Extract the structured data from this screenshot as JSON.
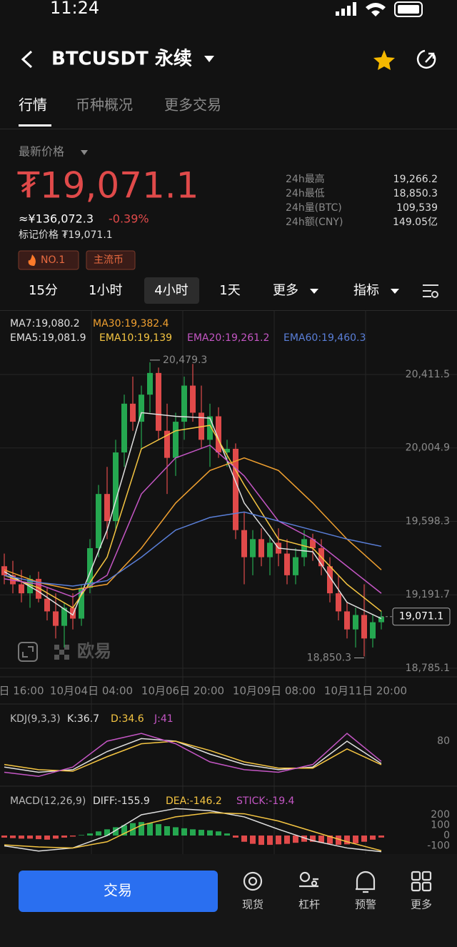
{
  "status_bar": {
    "time": "11:24"
  },
  "header": {
    "title": "BTCUSDT 永续"
  },
  "tabs": [
    "行情",
    "币种概况",
    "更多交易"
  ],
  "price": {
    "label": "最新价格",
    "last": "₮19,071.1",
    "cny": "≈¥136,072.3",
    "change": "-0.39%",
    "mark": "标记价格 ₮19,071.1"
  },
  "stats": [
    [
      "24h最高",
      "19,266.2"
    ],
    [
      "24h最低",
      "18,850.3"
    ],
    [
      "24h量(BTC)",
      "109,539"
    ],
    [
      "24h额(CNY)",
      "149.05亿"
    ]
  ],
  "tags": [
    "NO.1",
    "主流币"
  ],
  "intervals": [
    "15分",
    "1小时",
    "4小时",
    "1天",
    "更多",
    "指标"
  ],
  "chart": {
    "type": "candlestick",
    "legend": [
      {
        "text": "MA7:19,080.2",
        "color": "#e0e0e0"
      },
      {
        "text": "MA30:19,382.4",
        "color": "#f0a030"
      },
      {
        "text": "EMA5:19,081.9",
        "color": "#e0e0e0"
      },
      {
        "text": "EMA10:19,139",
        "color": "#f5c542"
      },
      {
        "text": "EMA20:19,261.2",
        "color": "#c456c4"
      },
      {
        "text": "EMA60:19,460.3",
        "color": "#5a7fd8"
      }
    ],
    "ylim": [
      18745.5,
      20546
    ],
    "yticks": [
      {
        "value": 20411.5,
        "label": "20,411.5"
      },
      {
        "value": 20004.9,
        "label": "20,004.9"
      },
      {
        "value": 19598.3,
        "label": "19,598.3"
      },
      {
        "value": 19191.7,
        "label": "19,191.7"
      },
      {
        "value": 18785.1,
        "label": "18,785.1"
      }
    ],
    "x_labels": [
      "日 16:00",
      "10月04日 04:00",
      "10月06日 20:00",
      "10月09日 08:00",
      "10月11日 20:00"
    ],
    "high_label": "20,479.3",
    "low_label": "18,850.3",
    "last_label": "19,071.1",
    "up_color": "#25a750",
    "down_color": "#e04a4a",
    "candles": {
      "open": [
        19350,
        19300,
        19250,
        19200,
        19280,
        19170,
        19100,
        19020,
        19120,
        19060,
        19230,
        19450,
        19750,
        19600,
        19980,
        20250,
        20150,
        20300,
        20420,
        20100,
        19950,
        20150,
        20350,
        20200,
        20050,
        20180,
        19980,
        20000,
        19550,
        19400,
        19500,
        19400,
        19480,
        19420,
        19300,
        19400,
        19500,
        19450,
        19350,
        19200,
        19100,
        19000,
        19080,
        18950,
        19040
      ],
      "high": [
        19420,
        19380,
        19330,
        19300,
        19320,
        19230,
        19200,
        19150,
        19200,
        19250,
        19500,
        19800,
        19900,
        20050,
        20300,
        20400,
        20350,
        20479.3,
        20450,
        20250,
        20200,
        20400,
        20470,
        20350,
        20250,
        20230,
        20050,
        20030,
        19650,
        19550,
        19560,
        19520,
        19560,
        19500,
        19450,
        19550,
        19530,
        19500,
        19400,
        19300,
        19150,
        19120,
        19250,
        19080,
        19100
      ],
      "low": [
        19250,
        19200,
        19150,
        19120,
        19150,
        19050,
        18950,
        18900,
        19000,
        19020,
        19200,
        19400,
        19500,
        19550,
        19900,
        20100,
        20000,
        20200,
        20050,
        19750,
        19850,
        20050,
        20150,
        20000,
        19900,
        19950,
        19900,
        19500,
        19250,
        19300,
        19350,
        19300,
        19350,
        19250,
        19250,
        19350,
        19380,
        19300,
        19150,
        19050,
        18950,
        18900,
        18850.3,
        18900,
        19000
      ],
      "close": [
        19300,
        19250,
        19200,
        19280,
        19170,
        19100,
        19020,
        19120,
        19060,
        19230,
        19450,
        19750,
        19600,
        19980,
        20250,
        20150,
        20300,
        20420,
        20100,
        19950,
        20150,
        20350,
        20200,
        20050,
        20180,
        19980,
        20000,
        19550,
        19400,
        19500,
        19400,
        19480,
        19420,
        19300,
        19400,
        19500,
        19450,
        19350,
        19200,
        19100,
        19000,
        19080,
        18950,
        19040,
        19071.1
      ]
    },
    "line_x": [
      0,
      4,
      8,
      12,
      16,
      20,
      24,
      28,
      32,
      36,
      40,
      44
    ],
    "lines": [
      {
        "color": "#e0e0e0",
        "values": [
          19320,
          19210,
          19080,
          19550,
          20200,
          20180,
          20170,
          19700,
          19450,
          19430,
          19150,
          19060
        ]
      },
      {
        "color": "#f5c542",
        "values": [
          19300,
          19230,
          19120,
          19400,
          20000,
          20100,
          20130,
          19800,
          19500,
          19450,
          19250,
          19100
        ]
      },
      {
        "color": "#c456c4",
        "values": [
          19280,
          19250,
          19180,
          19300,
          19750,
          19950,
          20020,
          19850,
          19600,
          19500,
          19350,
          19200
        ]
      },
      {
        "color": "#f0a030",
        "values": [
          19330,
          19260,
          19220,
          19250,
          19450,
          19700,
          19880,
          19950,
          19880,
          19700,
          19500,
          19330
        ]
      },
      {
        "color": "#5a7fd8",
        "values": [
          19300,
          19260,
          19240,
          19270,
          19400,
          19550,
          19620,
          19650,
          19600,
          19550,
          19500,
          19460
        ]
      }
    ]
  },
  "kdj": {
    "legend": [
      {
        "text": "KDJ(9,3,3)",
        "color": "#bbbbbb"
      },
      {
        "text": "K:36.7",
        "color": "#e0e0e0"
      },
      {
        "text": "D:34.6",
        "color": "#f5c542"
      },
      {
        "text": "J:41",
        "color": "#c456c4"
      }
    ],
    "ylim": [
      0,
      100
    ],
    "yticks": [
      80
    ],
    "lines": [
      {
        "color": "#e0e0e0",
        "values": [
          30,
          20,
          25,
          60,
          85,
          80,
          55,
          35,
          25,
          30,
          80,
          36.7
        ]
      },
      {
        "color": "#f5c542",
        "values": [
          35,
          25,
          22,
          50,
          75,
          80,
          62,
          40,
          28,
          28,
          65,
          34.6
        ]
      },
      {
        "color": "#c456c4",
        "values": [
          20,
          12,
          30,
          80,
          95,
          75,
          40,
          25,
          20,
          35,
          95,
          41
        ]
      }
    ]
  },
  "macd": {
    "legend": [
      {
        "text": "MACD(12,26,9)",
        "color": "#bbbbbb"
      },
      {
        "text": "DIFF:-155.9",
        "color": "#e0e0e0"
      },
      {
        "text": "DEA:-146.2",
        "color": "#f5c542"
      },
      {
        "text": "STICK:-19.4",
        "color": "#c456c4"
      }
    ],
    "ylim": [
      -179,
      407
    ],
    "yticks": [
      200,
      100,
      0,
      -100
    ],
    "sticks": [
      -20,
      -25,
      -30,
      -30,
      -35,
      -40,
      -30,
      -20,
      -10,
      5,
      20,
      40,
      60,
      80,
      100,
      120,
      130,
      120,
      110,
      90,
      80,
      70,
      60,
      55,
      50,
      40,
      20,
      -20,
      -60,
      -80,
      -90,
      -90,
      -85,
      -80,
      -70,
      -60,
      -60,
      -70,
      -80,
      -90,
      -85,
      -75,
      -60,
      -40,
      -19.4
    ],
    "lines": [
      {
        "color": "#e0e0e0",
        "values": [
          -100,
          -150,
          -120,
          0,
          200,
          260,
          240,
          180,
          60,
          -50,
          -120,
          -155.9
        ]
      },
      {
        "color": "#f5c542",
        "values": [
          -90,
          -110,
          -120,
          -60,
          100,
          180,
          220,
          210,
          140,
          40,
          -60,
          -146.2
        ]
      }
    ]
  },
  "watermark": "欧易",
  "nav": {
    "trade": "交易",
    "items": [
      "现货",
      "杠杆",
      "预警",
      "更多"
    ]
  }
}
